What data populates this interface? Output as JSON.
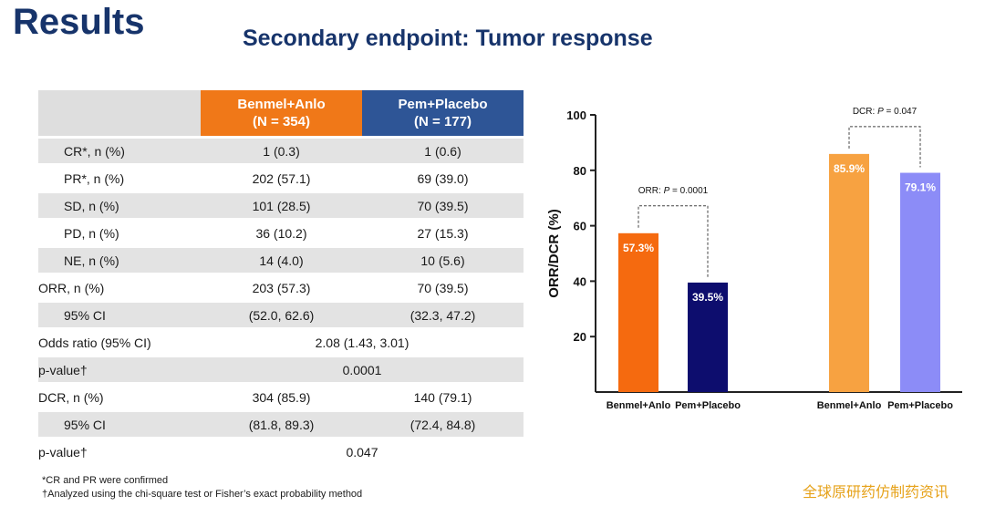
{
  "slide": {
    "title": "Results",
    "subtitle": "Secondary endpoint: Tumor response"
  },
  "table": {
    "header": {
      "col1": [
        "Benmel+Anlo",
        "(N  = 354)"
      ],
      "col2": [
        "Pem+Placebo",
        "(N = 177)"
      ]
    },
    "rows": [
      {
        "label": "CR*, n (%)",
        "indent": true,
        "shade": "g",
        "values": [
          "1 (0.3)",
          "1 (0.6)"
        ]
      },
      {
        "label": "PR*, n (%)",
        "indent": true,
        "shade": "w",
        "values": [
          "202 (57.1)",
          "69 (39.0)"
        ]
      },
      {
        "label": "SD, n (%)",
        "indent": true,
        "shade": "g",
        "values": [
          "101 (28.5)",
          "70 (39.5)"
        ]
      },
      {
        "label": "PD, n (%)",
        "indent": true,
        "shade": "w",
        "values": [
          "36 (10.2)",
          "27 (15.3)"
        ]
      },
      {
        "label": "NE, n (%)",
        "indent": true,
        "shade": "g",
        "values": [
          "14 (4.0)",
          "10 (5.6)"
        ]
      },
      {
        "label": "ORR, n (%)",
        "indent": false,
        "shade": "w",
        "values": [
          "203 (57.3)",
          "70 (39.5)"
        ]
      },
      {
        "label": "95% CI",
        "indent": true,
        "shade": "g",
        "values": [
          "(52.0, 62.6)",
          "(32.3, 47.2)"
        ]
      },
      {
        "label": "Odds ratio (95% CI)",
        "indent": false,
        "shade": "w",
        "merged": "2.08 (1.43, 3.01)"
      },
      {
        "label": "p-value†",
        "indent": false,
        "shade": "g",
        "merged": "0.0001"
      },
      {
        "label": "DCR, n (%)",
        "indent": false,
        "shade": "w",
        "values": [
          "304 (85.9)",
          "140 (79.1)"
        ]
      },
      {
        "label": "95% CI",
        "indent": true,
        "shade": "g",
        "values": [
          "(81.8, 89.3)",
          "(72.4, 84.8)"
        ]
      },
      {
        "label": "p-value†",
        "indent": false,
        "shade": "w",
        "merged": "0.047"
      }
    ]
  },
  "footnotes": [
    "*CR and PR were confirmed",
    "†Analyzed using the chi-square test or Fisher’s exact probability method"
  ],
  "watermark": "全球原研药仿制药资讯",
  "chart_data": {
    "type": "bar",
    "ylabel": "ORR/DCR (%)",
    "ylim": [
      0,
      100
    ],
    "yticks": [
      20,
      40,
      60,
      80,
      100
    ],
    "grid": false,
    "groups": [
      {
        "annotation": {
          "prefix": "ORR: ",
          "italic": "P",
          "suffix": " = 0.0001"
        },
        "bars": [
          {
            "category": "Benmel+Anlo",
            "value": 57.3,
            "label": "57.3%",
            "color": "#f56a0f"
          },
          {
            "category": "Pem+Placebo",
            "value": 39.5,
            "label": "39.5%",
            "color": "#0d0d6e"
          }
        ]
      },
      {
        "annotation": {
          "prefix": "DCR: ",
          "italic": "P",
          "suffix": " = 0.047"
        },
        "bars": [
          {
            "category": "Benmel+Anlo",
            "value": 85.9,
            "label": "85.9%",
            "color": "#f7a241"
          },
          {
            "category": "Pem+Placebo",
            "value": 79.1,
            "label": "79.1%",
            "color": "#8c8cf7"
          }
        ]
      }
    ]
  }
}
